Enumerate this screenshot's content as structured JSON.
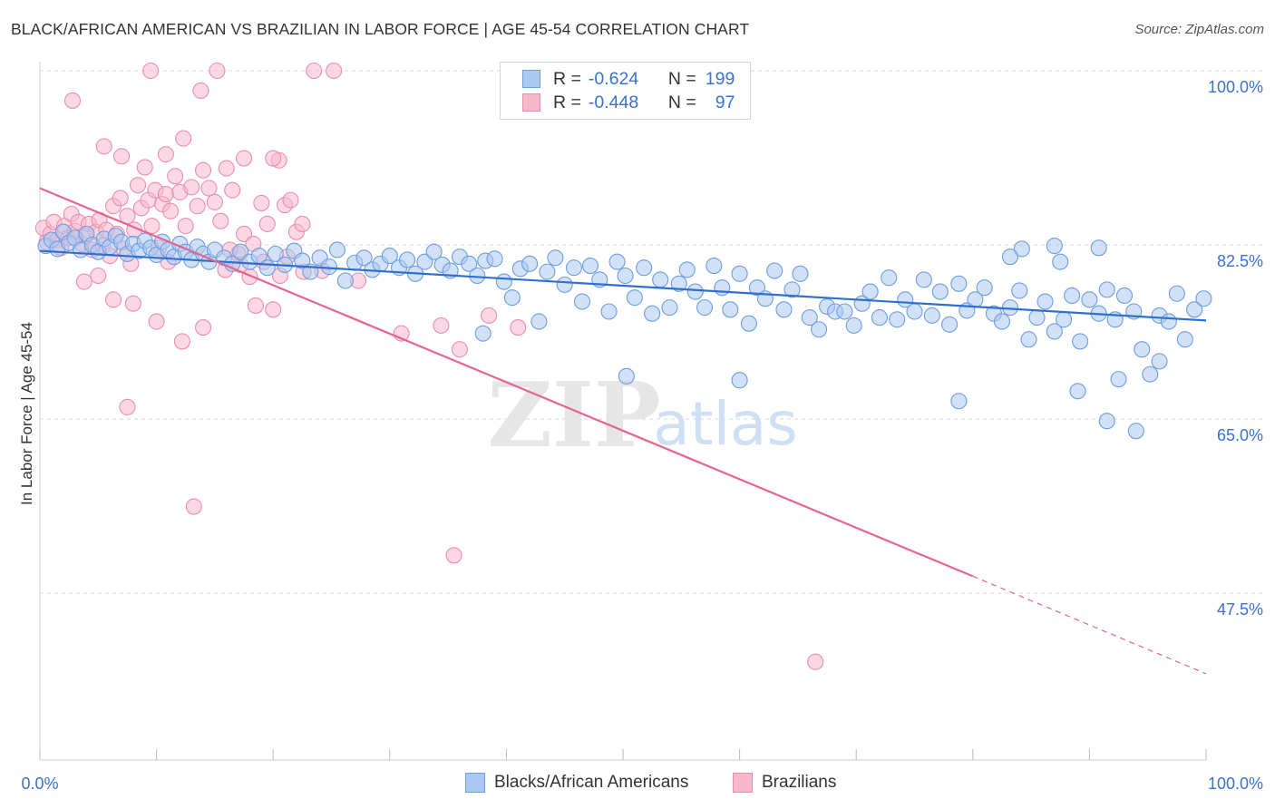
{
  "title": "BLACK/AFRICAN AMERICAN VS BRAZILIAN IN LABOR FORCE | AGE 45-54 CORRELATION CHART",
  "source": "Source: ZipAtlas.com",
  "watermark": {
    "zip": "ZIP",
    "atlas": "atlas"
  },
  "colors": {
    "blue_fill": "#a9c8f3",
    "blue_stroke": "#6f9de0",
    "blue_line": "#2f6fce",
    "pink_fill": "#f7b8cc",
    "pink_stroke": "#ec8fac",
    "pink_line": "#e5658f",
    "tick_label": "#3a72d0",
    "grid": "#d9d9d9"
  },
  "legend_top": {
    "rows": [
      {
        "r_label": "R =",
        "r_value": "-0.624",
        "n_label": "N =",
        "n_value": "199"
      },
      {
        "r_label": "R =",
        "r_value": "-0.448",
        "n_label": "N =",
        "n_value": "97"
      }
    ]
  },
  "chart_data": {
    "type": "scatter",
    "title": "BLACK/AFRICAN AMERICAN VS BRAZILIAN IN LABOR FORCE | AGE 45-54 CORRELATION CHART",
    "xlabel": "",
    "ylabel": "In Labor Force | Age 45-54",
    "xlim": [
      0,
      100
    ],
    "ylim": [
      30,
      102
    ],
    "x_tick_labels": [
      "0.0%",
      "100.0%"
    ],
    "y_ticks": [
      47.5,
      65.0,
      82.5,
      100.0
    ],
    "y_tick_labels": [
      "47.5%",
      "65.0%",
      "82.5%",
      "100.0%"
    ],
    "grid": true,
    "legend_position": "bottom",
    "series": [
      {
        "name": "Blacks/African Americans",
        "r": -0.624,
        "n": 199,
        "trend": {
          "x": [
            0,
            100
          ],
          "y": [
            81.9,
            74.9
          ]
        },
        "points": [
          [
            0.5,
            82.4
          ],
          [
            1.0,
            83.0
          ],
          [
            1.5,
            82.1
          ],
          [
            2.0,
            83.8
          ],
          [
            2.5,
            82.7
          ],
          [
            3.0,
            83.2
          ],
          [
            3.5,
            82.0
          ],
          [
            4.0,
            83.6
          ],
          [
            4.5,
            82.5
          ],
          [
            5.0,
            81.8
          ],
          [
            5.5,
            83.1
          ],
          [
            6.0,
            82.3
          ],
          [
            6.5,
            83.4
          ],
          [
            7.0,
            82.8
          ],
          [
            7.5,
            81.6
          ],
          [
            8.0,
            82.6
          ],
          [
            8.5,
            81.9
          ],
          [
            9.0,
            82.9
          ],
          [
            9.5,
            82.2
          ],
          [
            10.0,
            81.5
          ],
          [
            10.5,
            82.8
          ],
          [
            11.0,
            82.0
          ],
          [
            11.5,
            81.3
          ],
          [
            12.0,
            82.6
          ],
          [
            12.5,
            81.8
          ],
          [
            13.0,
            81.0
          ],
          [
            13.5,
            82.3
          ],
          [
            14.0,
            81.6
          ],
          [
            14.5,
            80.8
          ],
          [
            15.0,
            82.0
          ],
          [
            15.8,
            81.2
          ],
          [
            16.5,
            80.6
          ],
          [
            17.2,
            81.8
          ],
          [
            18.0,
            80.8
          ],
          [
            18.8,
            81.4
          ],
          [
            19.5,
            80.2
          ],
          [
            20.2,
            81.6
          ],
          [
            21.0,
            80.5
          ],
          [
            21.8,
            81.9
          ],
          [
            22.5,
            80.9
          ],
          [
            23.2,
            79.8
          ],
          [
            24.0,
            81.2
          ],
          [
            24.8,
            80.3
          ],
          [
            25.5,
            82.0
          ],
          [
            26.2,
            78.9
          ],
          [
            27.0,
            80.7
          ],
          [
            27.8,
            81.2
          ],
          [
            28.5,
            80.0
          ],
          [
            29.2,
            80.6
          ],
          [
            30.0,
            81.4
          ],
          [
            30.8,
            80.2
          ],
          [
            31.5,
            81.0
          ],
          [
            32.2,
            79.6
          ],
          [
            33.0,
            80.8
          ],
          [
            33.8,
            81.8
          ],
          [
            34.5,
            80.5
          ],
          [
            35.2,
            79.9
          ],
          [
            36.0,
            81.3
          ],
          [
            36.8,
            80.6
          ],
          [
            37.5,
            79.4
          ],
          [
            38.2,
            80.9
          ],
          [
            39.0,
            81.1
          ],
          [
            39.8,
            78.8
          ],
          [
            40.5,
            77.2
          ],
          [
            41.2,
            80.1
          ],
          [
            42.0,
            80.6
          ],
          [
            42.8,
            74.8
          ],
          [
            43.5,
            79.8
          ],
          [
            44.2,
            81.2
          ],
          [
            45.0,
            78.5
          ],
          [
            45.8,
            80.2
          ],
          [
            46.5,
            76.8
          ],
          [
            47.2,
            80.4
          ],
          [
            48.0,
            79.0
          ],
          [
            48.8,
            75.8
          ],
          [
            49.5,
            80.8
          ],
          [
            50.2,
            79.4
          ],
          [
            51.0,
            77.2
          ],
          [
            51.8,
            80.2
          ],
          [
            52.5,
            75.6
          ],
          [
            53.2,
            79.0
          ],
          [
            54.0,
            76.2
          ],
          [
            54.8,
            78.6
          ],
          [
            55.5,
            80.0
          ],
          [
            56.2,
            77.8
          ],
          [
            57.0,
            76.2
          ],
          [
            57.8,
            80.4
          ],
          [
            58.5,
            78.2
          ],
          [
            59.2,
            76.0
          ],
          [
            60.0,
            79.6
          ],
          [
            60.8,
            74.6
          ],
          [
            61.5,
            78.2
          ],
          [
            62.2,
            77.1
          ],
          [
            63.0,
            79.9
          ],
          [
            63.8,
            76.0
          ],
          [
            64.5,
            78.0
          ],
          [
            65.2,
            79.6
          ],
          [
            66.0,
            75.2
          ],
          [
            66.8,
            74.0
          ],
          [
            67.5,
            76.3
          ],
          [
            68.2,
            75.8
          ],
          [
            69.0,
            75.8
          ],
          [
            69.8,
            74.4
          ],
          [
            70.5,
            76.6
          ],
          [
            71.2,
            77.8
          ],
          [
            72.0,
            75.2
          ],
          [
            72.8,
            79.2
          ],
          [
            73.5,
            75.0
          ],
          [
            74.2,
            77.0
          ],
          [
            75.0,
            75.8
          ],
          [
            75.8,
            79.0
          ],
          [
            76.5,
            75.4
          ],
          [
            77.2,
            77.8
          ],
          [
            78.0,
            74.5
          ],
          [
            78.8,
            78.6
          ],
          [
            79.5,
            75.9
          ],
          [
            80.2,
            77.0
          ],
          [
            81.0,
            78.2
          ],
          [
            81.8,
            75.6
          ],
          [
            82.5,
            74.8
          ],
          [
            83.2,
            76.2
          ],
          [
            84.0,
            77.9
          ],
          [
            84.8,
            73.0
          ],
          [
            85.5,
            75.2
          ],
          [
            86.2,
            76.8
          ],
          [
            87.0,
            73.8
          ],
          [
            87.8,
            75.0
          ],
          [
            88.5,
            77.4
          ],
          [
            89.2,
            72.8
          ],
          [
            90.0,
            77.0
          ],
          [
            90.8,
            75.6
          ],
          [
            91.5,
            78.0
          ],
          [
            92.2,
            75.0
          ],
          [
            93.0,
            77.4
          ],
          [
            93.8,
            75.8
          ],
          [
            94.5,
            72.0
          ],
          [
            95.2,
            69.5
          ],
          [
            96.0,
            75.4
          ],
          [
            96.8,
            74.8
          ],
          [
            97.5,
            77.6
          ],
          [
            98.2,
            73.0
          ],
          [
            99.0,
            76.0
          ],
          [
            99.8,
            77.1
          ],
          [
            38.0,
            73.6
          ],
          [
            50.3,
            69.3
          ],
          [
            60.0,
            68.9
          ],
          [
            78.8,
            66.8
          ],
          [
            89.0,
            67.8
          ],
          [
            91.5,
            64.8
          ],
          [
            94.0,
            63.8
          ],
          [
            92.5,
            69.0
          ],
          [
            96.0,
            70.8
          ],
          [
            84.2,
            82.1
          ],
          [
            87.0,
            82.4
          ],
          [
            90.8,
            82.2
          ],
          [
            83.2,
            81.3
          ],
          [
            87.5,
            80.8
          ]
        ]
      },
      {
        "name": "Brazilians",
        "r": -0.448,
        "n": 97,
        "trend": {
          "x": [
            0,
            80
          ],
          "y": [
            88.2,
            49.2
          ]
        },
        "trend_dashed": {
          "x": [
            80,
            100
          ],
          "y": [
            49.2,
            39.4
          ]
        },
        "points": [
          [
            0.3,
            84.2
          ],
          [
            0.6,
            82.8
          ],
          [
            0.9,
            83.6
          ],
          [
            1.2,
            84.8
          ],
          [
            1.5,
            83.0
          ],
          [
            1.8,
            82.2
          ],
          [
            2.1,
            84.4
          ],
          [
            2.4,
            83.2
          ],
          [
            2.7,
            85.6
          ],
          [
            3.0,
            83.9
          ],
          [
            3.3,
            84.8
          ],
          [
            3.6,
            82.6
          ],
          [
            3.9,
            83.4
          ],
          [
            4.2,
            84.6
          ],
          [
            4.5,
            82.0
          ],
          [
            4.8,
            83.8
          ],
          [
            5.1,
            85.0
          ],
          [
            5.4,
            82.4
          ],
          [
            5.7,
            84.0
          ],
          [
            6.0,
            81.4
          ],
          [
            6.3,
            86.4
          ],
          [
            6.6,
            83.6
          ],
          [
            6.9,
            87.2
          ],
          [
            7.2,
            82.1
          ],
          [
            7.5,
            85.4
          ],
          [
            7.8,
            80.6
          ],
          [
            8.1,
            84.0
          ],
          [
            8.4,
            88.5
          ],
          [
            8.7,
            86.2
          ],
          [
            9.0,
            90.3
          ],
          [
            9.3,
            87.0
          ],
          [
            9.6,
            84.4
          ],
          [
            9.9,
            88.0
          ],
          [
            10.2,
            82.2
          ],
          [
            10.5,
            86.6
          ],
          [
            10.8,
            87.6
          ],
          [
            11.2,
            85.9
          ],
          [
            11.6,
            89.4
          ],
          [
            12.0,
            87.8
          ],
          [
            12.5,
            84.4
          ],
          [
            13.0,
            88.3
          ],
          [
            13.5,
            86.4
          ],
          [
            14.0,
            90.0
          ],
          [
            14.5,
            88.2
          ],
          [
            15.0,
            86.8
          ],
          [
            15.5,
            84.9
          ],
          [
            16.0,
            90.2
          ],
          [
            16.5,
            88.0
          ],
          [
            17.0,
            81.6
          ],
          [
            17.5,
            83.6
          ],
          [
            18.0,
            79.3
          ],
          [
            18.5,
            76.4
          ],
          [
            19.0,
            86.7
          ],
          [
            19.5,
            84.6
          ],
          [
            20.0,
            76.0
          ],
          [
            20.5,
            91.0
          ],
          [
            21.0,
            86.5
          ],
          [
            21.5,
            87.0
          ],
          [
            22.0,
            83.8
          ],
          [
            22.5,
            84.6
          ],
          [
            2.8,
            97.0
          ],
          [
            5.5,
            92.4
          ],
          [
            7.0,
            91.4
          ],
          [
            9.5,
            100.0
          ],
          [
            10.8,
            91.6
          ],
          [
            12.3,
            93.2
          ],
          [
            13.8,
            98.0
          ],
          [
            15.2,
            100.0
          ],
          [
            17.5,
            91.2
          ],
          [
            20.0,
            91.2
          ],
          [
            23.5,
            100.0
          ],
          [
            25.2,
            100.0
          ],
          [
            3.8,
            78.8
          ],
          [
            5.0,
            79.4
          ],
          [
            6.3,
            77.0
          ],
          [
            8.0,
            76.6
          ],
          [
            10.0,
            74.8
          ],
          [
            12.2,
            72.8
          ],
          [
            14.0,
            74.2
          ],
          [
            16.3,
            82.0
          ],
          [
            18.3,
            82.6
          ],
          [
            21.2,
            81.3
          ],
          [
            24.2,
            79.9
          ],
          [
            27.3,
            78.9
          ],
          [
            31.0,
            73.6
          ],
          [
            34.4,
            74.4
          ],
          [
            36.0,
            72.0
          ],
          [
            38.5,
            75.4
          ],
          [
            41.0,
            74.2
          ],
          [
            7.5,
            66.2
          ],
          [
            13.2,
            56.2
          ],
          [
            35.5,
            51.3
          ],
          [
            66.5,
            40.6
          ],
          [
            20.6,
            79.4
          ],
          [
            17.2,
            80.5
          ],
          [
            11.0,
            80.8
          ],
          [
            15.9,
            80.0
          ],
          [
            19.2,
            80.8
          ],
          [
            22.6,
            79.8
          ]
        ]
      }
    ]
  }
}
